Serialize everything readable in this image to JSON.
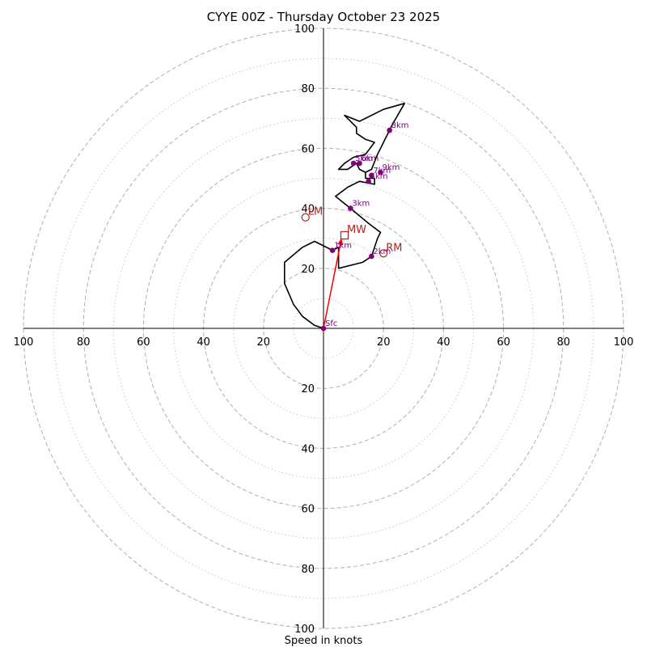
{
  "chart_data": {
    "type": "hodograph",
    "title": "CYYE 00Z - Thursday October 23 2025",
    "xlabel": "Speed in knots",
    "range": [
      -100,
      100
    ],
    "rings_dashed": [
      20,
      40,
      60,
      80,
      100
    ],
    "rings_dotted": [
      10,
      30,
      50,
      70,
      90
    ],
    "tick_values": [
      20,
      40,
      60,
      80,
      100
    ],
    "tick_labels": [
      "20",
      "40",
      "60",
      "80",
      "100"
    ],
    "colors": {
      "trace": "#000000",
      "height_points": "#800080",
      "motion": "#b22222",
      "shear_vector": "#ff0000",
      "rings": "#b0b0b0"
    },
    "trace": [
      [
        0,
        0
      ],
      [
        -3,
        1
      ],
      [
        -7,
        4
      ],
      [
        -10,
        8
      ],
      [
        -13,
        15
      ],
      [
        -13,
        22
      ],
      [
        -7,
        27
      ],
      [
        -3,
        29
      ],
      [
        3,
        26
      ],
      [
        5,
        27
      ],
      [
        5,
        20
      ],
      [
        13,
        22
      ],
      [
        16,
        24
      ],
      [
        18,
        30
      ],
      [
        19,
        32
      ],
      [
        15,
        35
      ],
      [
        9,
        40
      ],
      [
        4,
        44
      ],
      [
        8,
        47
      ],
      [
        12,
        49
      ],
      [
        17,
        48
      ],
      [
        17,
        50
      ],
      [
        14,
        50
      ],
      [
        14,
        52
      ],
      [
        12,
        53
      ],
      [
        11,
        55
      ],
      [
        8,
        53
      ],
      [
        5,
        53
      ],
      [
        7,
        55
      ],
      [
        10,
        57
      ],
      [
        14,
        58
      ],
      [
        17,
        62
      ],
      [
        14,
        63
      ],
      [
        11,
        65
      ],
      [
        11,
        67
      ],
      [
        7,
        71
      ],
      [
        12,
        69
      ],
      [
        20,
        73
      ],
      [
        27,
        75
      ],
      [
        23,
        68
      ],
      [
        22,
        66
      ],
      [
        20,
        62
      ],
      [
        18,
        58
      ],
      [
        16,
        53
      ],
      [
        14,
        52
      ]
    ],
    "height_points": [
      {
        "label": "Sfc",
        "u": 0,
        "v": 0
      },
      {
        "label": "1km",
        "u": 3,
        "v": 26
      },
      {
        "label": "2km",
        "u": 16,
        "v": 24
      },
      {
        "label": "3km",
        "u": 9,
        "v": 40
      },
      {
        "label": "4km",
        "u": 15,
        "v": 49
      },
      {
        "label": "5km",
        "u": 10,
        "v": 55
      },
      {
        "label": "6km",
        "u": 12,
        "v": 55
      },
      {
        "label": "7km",
        "u": 16,
        "v": 51
      },
      {
        "label": "8km",
        "u": 22,
        "v": 66
      },
      {
        "label": "9km",
        "u": 19,
        "v": 52
      }
    ],
    "storm_motion": [
      {
        "label": "LM",
        "u": -6,
        "v": 37,
        "marker": "circle"
      },
      {
        "label": "RM",
        "u": 20,
        "v": 25,
        "marker": "circle"
      },
      {
        "label": "MW",
        "u": 7,
        "v": 31,
        "marker": "square"
      }
    ],
    "shear_vector": {
      "from": [
        0,
        0
      ],
      "to": [
        6,
        30
      ]
    }
  }
}
